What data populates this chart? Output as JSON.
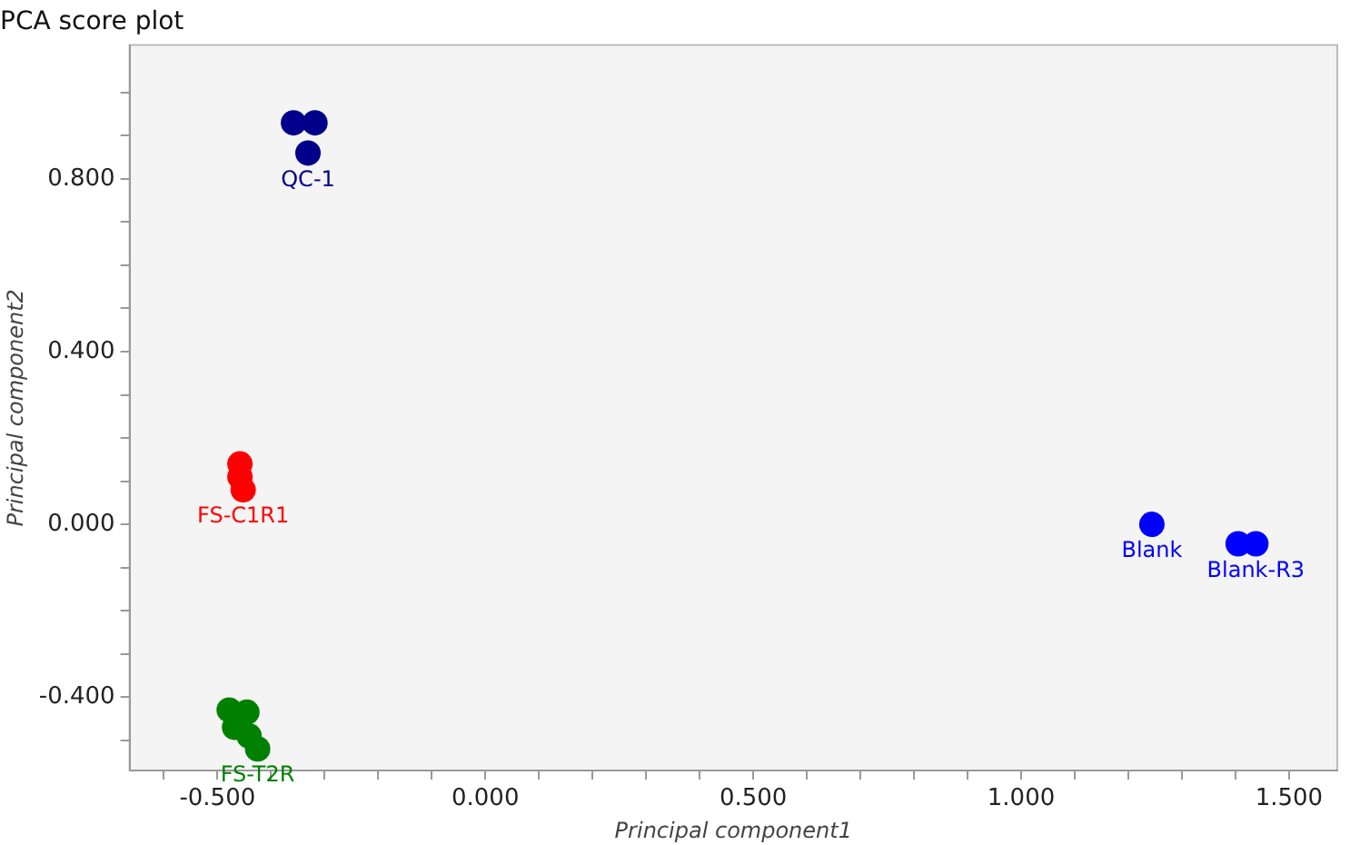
{
  "chart_data": {
    "type": "scatter",
    "title": "PCA score plot",
    "xlabel": "Principal component1",
    "ylabel": "Principal component2",
    "series": [
      {
        "color": "#00008b",
        "x": [
          -0.358,
          -0.318,
          -0.331
        ],
        "values": [
          0.93,
          0.93,
          0.86
        ]
      },
      {
        "color": "#ff0000",
        "x": [
          -0.458,
          -0.458,
          -0.452
        ],
        "values": [
          0.14,
          0.11,
          0.08
        ]
      },
      {
        "color": "#008000",
        "x": [
          -0.478,
          -0.445,
          -0.468,
          -0.441,
          -0.425
        ],
        "values": [
          -0.43,
          -0.435,
          -0.47,
          -0.49,
          -0.52
        ]
      },
      {
        "color": "#0000ff",
        "x": [
          1.244,
          1.405,
          1.438
        ],
        "values": [
          0.0,
          -0.045,
          -0.045
        ]
      }
    ],
    "annotations": [
      {
        "text": "QC-1",
        "x": -0.331,
        "y": 0.86
      },
      {
        "text": "FS-C1R1",
        "x": -0.452,
        "y": 0.08
      },
      {
        "text": "FS-T2R",
        "x": -0.425,
        "y": -0.52
      },
      {
        "text": "Blank",
        "x": 1.244,
        "y": 0.0
      },
      {
        "text": "Blank-R3",
        "x": 1.438,
        "y": -0.045
      }
    ],
    "marker": "circle",
    "grid": false,
    "legend": false,
    "xlim": [
      -0.664,
      1.59
    ],
    "ylim": [
      -0.57,
      1.11
    ],
    "xticks": [
      {
        "value": -0.6,
        "label": null
      },
      {
        "value": -0.5,
        "label": "-0.500"
      },
      {
        "value": -0.4,
        "label": null
      },
      {
        "value": -0.3,
        "label": null
      },
      {
        "value": -0.2,
        "label": null
      },
      {
        "value": -0.1,
        "label": null
      },
      {
        "value": 0,
        "label": "0.000"
      },
      {
        "value": 0.1,
        "label": null
      },
      {
        "value": 0.2,
        "label": null
      },
      {
        "value": 0.3,
        "label": null
      },
      {
        "value": 0.4,
        "label": null
      },
      {
        "value": 0.5,
        "label": "0.500"
      },
      {
        "value": 0.6,
        "label": null
      },
      {
        "value": 0.7,
        "label": null
      },
      {
        "value": 0.8,
        "label": null
      },
      {
        "value": 0.9,
        "label": null
      },
      {
        "value": 1.0,
        "label": "1.000"
      },
      {
        "value": 1.1,
        "label": null
      },
      {
        "value": 1.2,
        "label": null
      },
      {
        "value": 1.3,
        "label": null
      },
      {
        "value": 1.4,
        "label": null
      },
      {
        "value": 1.5,
        "label": "1.500"
      }
    ],
    "yticks": [
      {
        "value": -0.5,
        "label": null
      },
      {
        "value": -0.4,
        "label": "-0.400"
      },
      {
        "value": -0.3,
        "label": null
      },
      {
        "value": -0.2,
        "label": null
      },
      {
        "value": -0.1,
        "label": null
      },
      {
        "value": 0,
        "label": "0.000"
      },
      {
        "value": 0.1,
        "label": null
      },
      {
        "value": 0.2,
        "label": null
      },
      {
        "value": 0.3,
        "label": null
      },
      {
        "value": 0.4,
        "label": "0.400"
      },
      {
        "value": 0.5,
        "label": null
      },
      {
        "value": 0.6,
        "label": null
      },
      {
        "value": 0.7,
        "label": null
      },
      {
        "value": 0.8,
        "label": "0.800"
      },
      {
        "value": 0.9,
        "label": null
      },
      {
        "value": 1.0,
        "label": null
      }
    ]
  }
}
